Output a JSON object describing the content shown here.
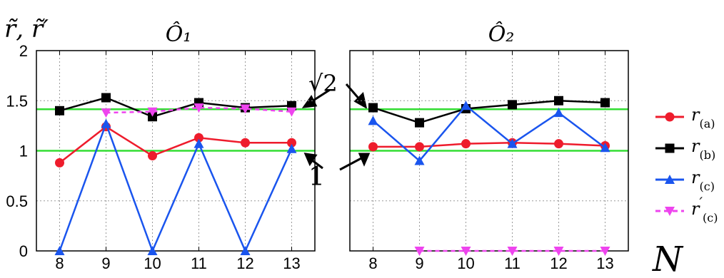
{
  "chart_data": [
    {
      "type": "line",
      "title": "Ô₁",
      "ylabel": "r̃, r̃′",
      "xlabel": "",
      "x": [
        8,
        9,
        10,
        11,
        12,
        13
      ],
      "xticks": [
        "8",
        "9",
        "10",
        "11",
        "12",
        "13"
      ],
      "yticks": [
        "0",
        "0.5",
        "1",
        "1.5",
        "2"
      ],
      "ylim": [
        0,
        2
      ],
      "grid": true,
      "reference_lines": [
        {
          "y": 1.4142,
          "color": "#33dd33"
        },
        {
          "y": 1.0,
          "color": "#33dd33"
        }
      ],
      "series": [
        {
          "name": "r(a)",
          "color": "#ee1c2c",
          "marker": "circle",
          "style": "solid",
          "x": [
            8,
            9,
            10,
            11,
            12,
            13
          ],
          "values": [
            0.88,
            1.24,
            0.95,
            1.13,
            1.08,
            1.08
          ]
        },
        {
          "name": "r(b)",
          "color": "#000000",
          "marker": "square",
          "style": "solid",
          "x": [
            8,
            9,
            10,
            11,
            12,
            13
          ],
          "values": [
            1.4,
            1.53,
            1.34,
            1.48,
            1.43,
            1.45
          ]
        },
        {
          "name": "r(c)",
          "color": "#1a55ee",
          "marker": "triangle-up",
          "style": "solid",
          "x": [
            8,
            9,
            10,
            11,
            12,
            13
          ],
          "values": [
            0.0,
            1.27,
            0.0,
            1.07,
            0.0,
            1.02
          ]
        },
        {
          "name": "r′(c)",
          "color": "#ee44ee",
          "marker": "triangle-down",
          "style": "dashed",
          "x": [
            9,
            10,
            11,
            12,
            13
          ],
          "values": [
            1.38,
            1.39,
            1.43,
            1.42,
            1.39
          ]
        }
      ]
    },
    {
      "type": "line",
      "title": "Ô₂",
      "xlabel": "N",
      "x": [
        8,
        9,
        10,
        11,
        12,
        13
      ],
      "xticks": [
        "8",
        "9",
        "10",
        "11",
        "12",
        "13"
      ],
      "ylim": [
        0,
        2
      ],
      "grid": true,
      "reference_lines": [
        {
          "y": 1.4142,
          "color": "#33dd33"
        },
        {
          "y": 1.0,
          "color": "#33dd33"
        }
      ],
      "series": [
        {
          "name": "r(a)",
          "color": "#ee1c2c",
          "marker": "circle",
          "style": "solid",
          "x": [
            8,
            9,
            10,
            11,
            12,
            13
          ],
          "values": [
            1.04,
            1.04,
            1.07,
            1.08,
            1.07,
            1.05
          ]
        },
        {
          "name": "r(b)",
          "color": "#000000",
          "marker": "square",
          "style": "solid",
          "x": [
            8,
            9,
            10,
            11,
            12,
            13
          ],
          "values": [
            1.43,
            1.28,
            1.42,
            1.46,
            1.5,
            1.48
          ]
        },
        {
          "name": "r(c)",
          "color": "#1a55ee",
          "marker": "triangle-up",
          "style": "solid",
          "x": [
            8,
            9,
            10,
            11,
            12,
            13
          ],
          "values": [
            1.3,
            0.9,
            1.45,
            1.07,
            1.38,
            1.03
          ]
        },
        {
          "name": "r′(c)",
          "color": "#ee44ee",
          "marker": "triangle-down",
          "style": "dashed",
          "x": [
            9,
            10,
            11,
            12,
            13
          ],
          "values": [
            0.0,
            0.0,
            0.0,
            0.0,
            0.0
          ]
        }
      ]
    }
  ],
  "annotations": {
    "sqrt2_label": "√2",
    "one_label": "1"
  },
  "legend": {
    "placement": "right",
    "entries": [
      {
        "name": "r(a)",
        "base": "r",
        "sub": "(a)",
        "prime": "",
        "color": "#ee1c2c",
        "marker": "circle",
        "style": "solid"
      },
      {
        "name": "r(b)",
        "base": "r",
        "sub": "(b)",
        "prime": "",
        "color": "#000000",
        "marker": "square",
        "style": "solid"
      },
      {
        "name": "r(c)",
        "base": "r",
        "sub": "(c)",
        "prime": "",
        "color": "#1a55ee",
        "marker": "triangle-up",
        "style": "solid"
      },
      {
        "name": "r′(c)",
        "base": "r",
        "sub": "(c)",
        "prime": "′",
        "color": "#ee44ee",
        "marker": "triangle-down",
        "style": "dashed"
      }
    ]
  }
}
